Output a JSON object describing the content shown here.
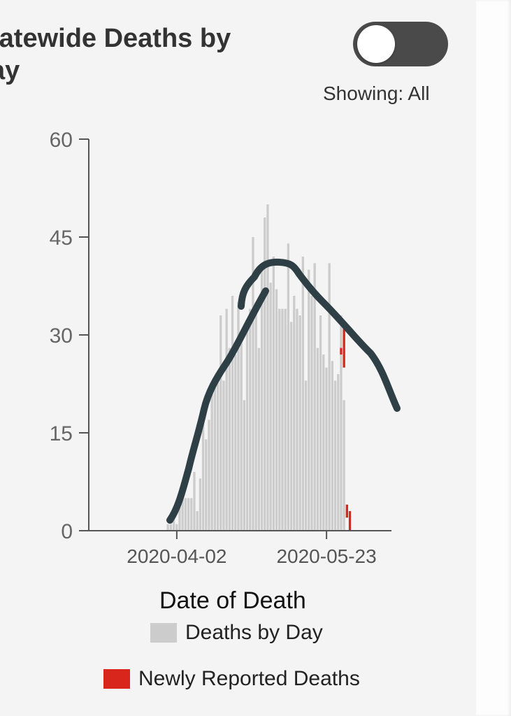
{
  "header": {
    "title_line1": "tatewide Deaths by",
    "title_line2": "ay",
    "toggle_state": "off",
    "showing_text": "Showing: All"
  },
  "colors": {
    "bar": "#cccccc",
    "new": "#d9261c",
    "annotation": "#2f3f46",
    "axis": "#555555"
  },
  "chart_data": {
    "type": "bar",
    "xlabel": "Date of Death",
    "ylabel": "",
    "ylim": [
      0,
      60
    ],
    "yticks": [
      0,
      15,
      30,
      45,
      60
    ],
    "xticks": [
      {
        "date": "2020-04-02",
        "label": "2020-04-02"
      },
      {
        "date": "2020-05-23",
        "label": "2020-05-23"
      }
    ],
    "start_date": "2020-03-04",
    "series": [
      {
        "name": "Deaths by Day",
        "values": [
          1,
          1,
          2,
          1,
          4,
          5,
          5,
          5,
          5,
          9,
          3,
          8,
          18,
          14,
          17,
          22,
          22,
          24,
          33,
          23,
          34,
          28,
          36,
          27,
          35,
          29,
          20,
          32,
          34,
          45,
          35,
          28,
          41,
          48,
          50,
          38,
          42,
          37,
          34,
          34,
          34,
          44,
          32,
          36,
          34,
          33,
          42,
          23,
          40,
          36,
          41,
          28,
          33,
          27,
          25,
          41,
          26,
          23,
          24,
          33,
          20
        ],
        "start_day_index": 26,
        "color": "#cccccc"
      },
      {
        "name": "Newly Reported Deaths",
        "segments": [
          {
            "day": 85,
            "bottom": 27,
            "top": 28
          },
          {
            "day": 86,
            "bottom": 25,
            "top": 31
          },
          {
            "day": 87,
            "bottom": 2,
            "top": 4
          },
          {
            "day": 88,
            "bottom": 0,
            "top": 3
          }
        ],
        "color": "#d9261c"
      }
    ],
    "legend": [
      {
        "label": "Deaths by Day",
        "color": "#cccccc"
      },
      {
        "label": "Newly Reported Deaths",
        "color": "#d9261c"
      }
    ],
    "annotation": "hand-drawn trend curve"
  }
}
